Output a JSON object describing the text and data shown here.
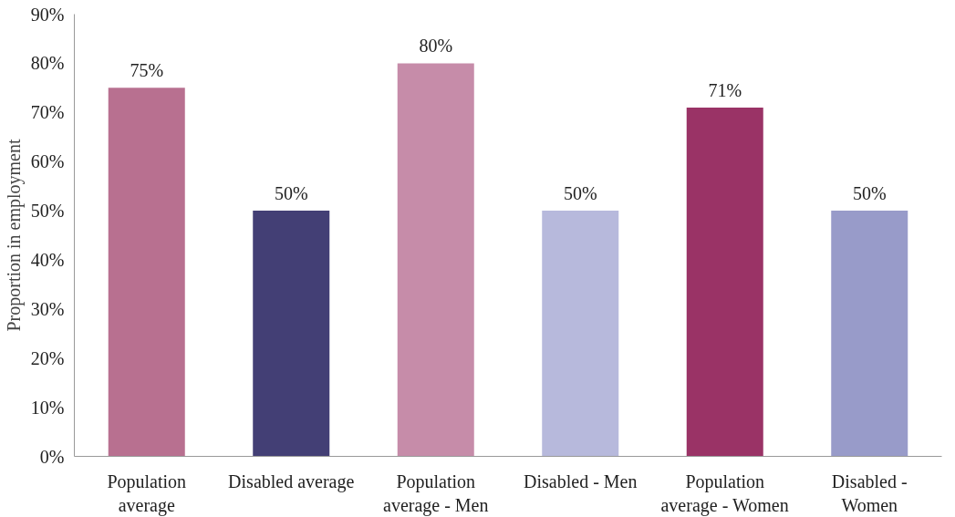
{
  "chart_data": {
    "type": "bar",
    "ylabel": "Proportion in employment",
    "categories": [
      "Population\naverage",
      "Disabled average",
      "Population\naverage - Men",
      "Disabled - Men",
      "Population\naverage - Women",
      "Disabled -\nWomen"
    ],
    "values": [
      75,
      50,
      80,
      50,
      71,
      50
    ],
    "value_labels": [
      "75%",
      "50%",
      "80%",
      "50%",
      "71%",
      "50%"
    ],
    "colors": [
      "#b87090",
      "#433f75",
      "#c68ca9",
      "#b7b9dc",
      "#9a3366",
      "#989bc9"
    ],
    "ylim": [
      0,
      90
    ],
    "yticks": [
      {
        "value": 0,
        "label": "0%"
      },
      {
        "value": 10,
        "label": "10%"
      },
      {
        "value": 20,
        "label": "20%"
      },
      {
        "value": 30,
        "label": "30%"
      },
      {
        "value": 40,
        "label": "40%"
      },
      {
        "value": 50,
        "label": "50%"
      },
      {
        "value": 60,
        "label": "60%"
      },
      {
        "value": 70,
        "label": "70%"
      },
      {
        "value": 80,
        "label": "80%"
      },
      {
        "value": 90,
        "label": "90%"
      }
    ],
    "grid": false
  }
}
